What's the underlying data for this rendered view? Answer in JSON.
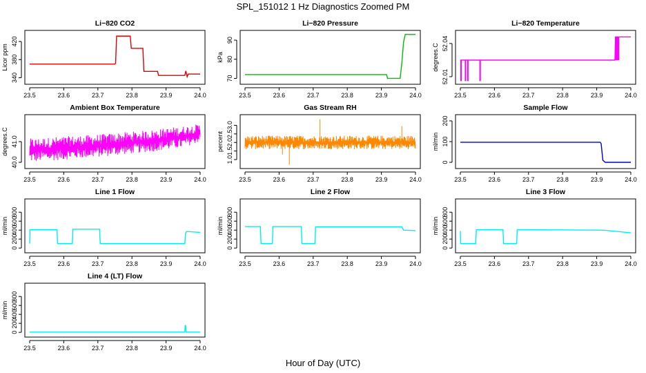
{
  "title": "SPL_151012  1 Hz Diagnostics Zoomed PM",
  "xlabel": "Hour of Day (UTC)",
  "chart_data": [
    {
      "type": "line",
      "title": "Li−820 CO2",
      "xlabel": "",
      "ylabel": "Licor ppm",
      "color": "#dd0000",
      "xlim": [
        23.5,
        24.0
      ],
      "ylim": [
        330,
        440
      ],
      "xticks": [
        "23.5",
        "23.6",
        "23.7",
        "23.8",
        "23.9",
        "24.0"
      ],
      "yticks": [
        "340",
        "380",
        "420"
      ],
      "ytick_values": [
        340,
        380,
        420
      ],
      "series": [
        {
          "x": [
            23.5,
            23.75,
            23.752,
            23.755,
            23.795,
            23.798,
            23.832,
            23.835,
            23.875,
            23.878,
            23.955,
            23.958,
            23.962,
            23.965,
            24.0
          ],
          "y": [
            370,
            370,
            372,
            432,
            432,
            405,
            405,
            354,
            354,
            345,
            345,
            355,
            342,
            348,
            348
          ]
        }
      ]
    },
    {
      "type": "line",
      "title": "Li−820 Pressure",
      "xlabel": "",
      "ylabel": "kPa",
      "color": "#00bb00",
      "xlim": [
        23.5,
        24.0
      ],
      "ylim": [
        68,
        94
      ],
      "xticks": [
        "23.5",
        "23.6",
        "23.7",
        "23.8",
        "23.9",
        "24.0"
      ],
      "yticks": [
        "70",
        "80",
        "90"
      ],
      "ytick_values": [
        70,
        80,
        90
      ],
      "series": [
        {
          "x": [
            23.5,
            23.915,
            23.918,
            23.955,
            23.96,
            23.965,
            23.97,
            24.0
          ],
          "y": [
            72,
            72,
            70,
            70,
            78,
            89,
            93,
            93
          ]
        }
      ]
    },
    {
      "type": "line",
      "title": "Li−820 Temperature",
      "xlabel": "",
      "ylabel": "degrees.C",
      "color": "#ff00ff",
      "xlim": [
        23.5,
        24.0
      ],
      "ylim": [
        52.005,
        52.05
      ],
      "xticks": [
        "23.5",
        "23.6",
        "23.7",
        "23.8",
        "23.9",
        "24.0"
      ],
      "yticks": [
        "52.01",
        "52.04"
      ],
      "ytick_values": [
        52.01,
        52.04
      ],
      "series": [
        {
          "x": [
            23.5,
            23.9535,
            23.955,
            24.0
          ],
          "y": [
            52.025,
            52.025,
            52.046,
            52.046
          ]
        }
      ],
      "dropouts_x": [
        23.502,
        23.515,
        23.522,
        23.558
      ],
      "dropout_to": 52.006,
      "noise_band": [
        23.955,
        23.965,
        52.025,
        52.046
      ]
    },
    {
      "type": "line",
      "title": "Ambient Box Temperature",
      "xlabel": "",
      "ylabel": "degrees.C",
      "color": "#ff00ff",
      "xlim": [
        23.5,
        24.0
      ],
      "ylim": [
        39.8,
        42.2
      ],
      "xticks": [
        "23.5",
        "23.6",
        "23.7",
        "23.8",
        "23.9",
        "24.0"
      ],
      "yticks": [
        "40.0",
        "41.0"
      ],
      "ytick_values": [
        40.0,
        41.0
      ],
      "band": {
        "x": [
          23.5,
          23.7,
          23.85,
          23.95,
          24.0
        ],
        "lo": [
          40.0,
          40.25,
          40.5,
          40.7,
          41.0
        ],
        "hi": [
          41.15,
          41.35,
          41.55,
          41.75,
          41.85
        ]
      }
    },
    {
      "type": "line",
      "title": "Gas Stream RH",
      "xlabel": "",
      "ylabel": "percent",
      "color": "#ff8800",
      "xlim": [
        23.5,
        24.0
      ],
      "ylim": [
        0.6,
        3.5
      ],
      "xticks": [
        "23.5",
        "23.6",
        "23.7",
        "23.8",
        "23.9",
        "24.0"
      ],
      "yticks": [
        "1.0",
        "1.5",
        "2.0",
        "2.5",
        "3.0"
      ],
      "ytick_values": [
        1.0,
        1.5,
        2.0,
        2.5,
        3.0
      ],
      "band": {
        "x": [
          23.5,
          24.0
        ],
        "lo": [
          1.6,
          1.6
        ],
        "hi": [
          2.4,
          2.4
        ]
      },
      "spikes": [
        {
          "x": 23.63,
          "y": 0.7
        },
        {
          "x": 23.72,
          "y": 3.35
        },
        {
          "x": 23.96,
          "y": 2.95
        },
        {
          "x": 23.61,
          "y": 1.3
        }
      ]
    },
    {
      "type": "line",
      "title": "Sample Flow",
      "xlabel": "",
      "ylabel": "ml/min",
      "color": "#0000cc",
      "xlim": [
        23.5,
        24.0
      ],
      "ylim": [
        -20,
        220
      ],
      "xticks": [
        "23.5",
        "23.6",
        "23.7",
        "23.8",
        "23.9",
        "24.0"
      ],
      "yticks": [
        "0",
        "100",
        "200"
      ],
      "ytick_values": [
        0,
        100,
        200
      ],
      "series": [
        {
          "x": [
            23.5,
            23.91,
            23.913,
            23.918,
            23.925,
            24.0
          ],
          "y": [
            97,
            97,
            90,
            10,
            0,
            0
          ]
        }
      ]
    },
    {
      "type": "line",
      "title": "Line 1 Flow",
      "xlabel": "",
      "ylabel": "ml/min",
      "color": "#00eeee",
      "xlim": [
        23.5,
        24.0
      ],
      "ylim": [
        -60,
        1050
      ],
      "xticks": [
        "23.5",
        "23.6",
        "23.7",
        "23.8",
        "23.9",
        "24.0"
      ],
      "yticks": [
        "0",
        "200",
        "400",
        "600",
        "800"
      ],
      "ytick_values": [
        0,
        200,
        400,
        600,
        800
      ],
      "series": [
        {
          "x": [
            23.5,
            23.501,
            23.58,
            23.582,
            23.625,
            23.627,
            23.705,
            23.707,
            23.955,
            23.957,
            23.96,
            24.0
          ],
          "y": [
            100,
            410,
            410,
            100,
            100,
            420,
            420,
            100,
            100,
            320,
            370,
            350
          ]
        }
      ]
    },
    {
      "type": "line",
      "title": "Line 2 Flow",
      "xlabel": "",
      "ylabel": "ml/min",
      "color": "#00eeee",
      "xlim": [
        23.5,
        24.0
      ],
      "ylim": [
        -60,
        1050
      ],
      "xticks": [
        "23.5",
        "23.6",
        "23.7",
        "23.8",
        "23.9",
        "24.0"
      ],
      "yticks": [
        "0",
        "200",
        "400",
        "600",
        "800"
      ],
      "ytick_values": [
        0,
        200,
        400,
        600,
        800
      ],
      "series": [
        {
          "x": [
            23.5,
            23.545,
            23.547,
            23.58,
            23.582,
            23.665,
            23.667,
            23.705,
            23.707,
            23.96,
            23.965,
            24.0
          ],
          "y": [
            480,
            480,
            100,
            100,
            480,
            480,
            100,
            100,
            475,
            475,
            400,
            390
          ]
        }
      ]
    },
    {
      "type": "line",
      "title": "Line 3 Flow",
      "xlabel": "",
      "ylabel": "ml/min",
      "color": "#00eeee",
      "xlim": [
        23.5,
        24.0
      ],
      "ylim": [
        -60,
        1050
      ],
      "xticks": [
        "23.5",
        "23.6",
        "23.7",
        "23.8",
        "23.9",
        "24.0"
      ],
      "yticks": [
        "0",
        "200",
        "400",
        "600",
        "800"
      ],
      "ytick_values": [
        0,
        200,
        400,
        600,
        800
      ],
      "series": [
        {
          "x": [
            23.5,
            23.501,
            23.503,
            23.545,
            23.547,
            23.625,
            23.627,
            23.665,
            23.667,
            23.92,
            23.96,
            24.0
          ],
          "y": [
            380,
            100,
            100,
            100,
            410,
            410,
            100,
            100,
            410,
            400,
            370,
            340
          ]
        }
      ]
    },
    {
      "type": "line",
      "title": "Line 4 (LT) Flow",
      "xlabel": "",
      "ylabel": "ml/min",
      "color": "#00eeee",
      "xlim": [
        23.5,
        24.0
      ],
      "ylim": [
        -60,
        1050
      ],
      "xticks": [
        "23.5",
        "23.6",
        "23.7",
        "23.8",
        "23.9",
        "24.0"
      ],
      "yticks": [
        "0",
        "200",
        "400",
        "600",
        "800"
      ],
      "ytick_values": [
        0,
        200,
        400,
        600,
        800
      ],
      "series": [
        {
          "x": [
            23.5,
            23.955,
            23.956,
            23.9575,
            23.959,
            24.0
          ],
          "y": [
            5,
            5,
            150,
            150,
            5,
            5
          ]
        }
      ]
    }
  ]
}
